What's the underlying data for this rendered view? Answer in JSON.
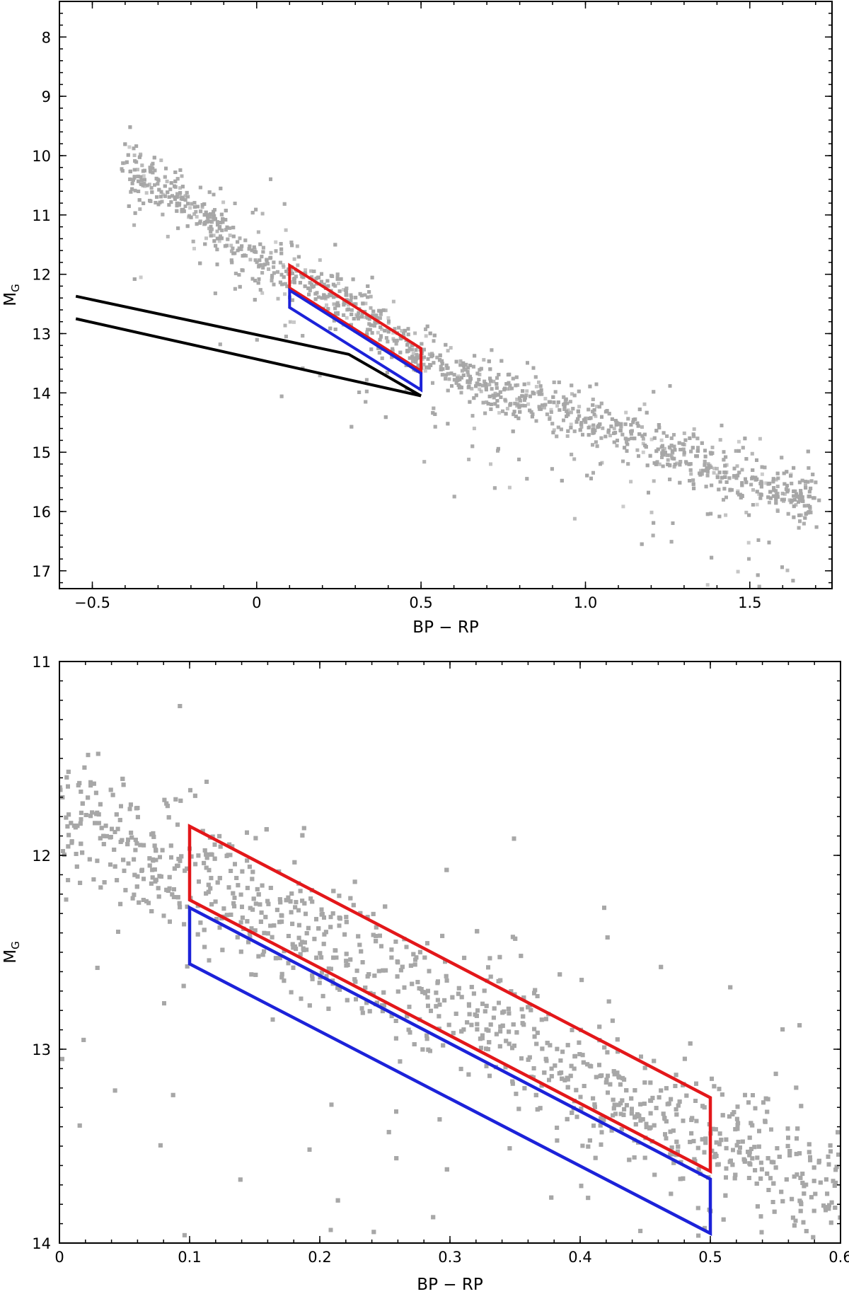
{
  "chart_data": [
    {
      "type": "scatter",
      "title": "",
      "xlabel": "BP − RP",
      "ylabel_main": "M",
      "ylabel_sub": "G",
      "xlim": [
        -0.6,
        1.75
      ],
      "ylim": [
        17.3,
        7.4
      ],
      "y_inverted": true,
      "x_ticks": [
        -0.5,
        0,
        0.5,
        1.0,
        1.5
      ],
      "x_tick_labels": [
        "−0.5",
        "0",
        "0.5",
        "1.0",
        "1.5"
      ],
      "x_minor_step": 0.1,
      "y_ticks": [
        8,
        9,
        10,
        11,
        12,
        13,
        14,
        15,
        16,
        17
      ],
      "y_tick_labels": [
        "8",
        "9",
        "10",
        "11",
        "12",
        "13",
        "14",
        "15",
        "16",
        "17"
      ],
      "y_minor_step": 0.2,
      "points": {
        "description": "white dwarf cooling sequence stars",
        "sequence": [
          [
            -0.35,
            10.35
          ],
          [
            -0.2,
            10.85
          ],
          [
            -0.05,
            11.55
          ],
          [
            0.1,
            11.95
          ],
          [
            0.3,
            12.55
          ],
          [
            0.5,
            13.45
          ],
          [
            0.75,
            14.0
          ],
          [
            1.0,
            14.45
          ],
          [
            1.25,
            15.0
          ],
          [
            1.45,
            15.45
          ],
          [
            1.65,
            15.7
          ]
        ],
        "count": 3400,
        "color": "#a6a6a6"
      },
      "polygons": [
        {
          "color": "#e3171a",
          "vertices": [
            [
              0.1,
              11.85
            ],
            [
              0.5,
              13.25
            ],
            [
              0.5,
              13.63
            ],
            [
              0.1,
              12.23
            ]
          ]
        },
        {
          "color": "#1c22d9",
          "vertices": [
            [
              0.1,
              12.27
            ],
            [
              0.5,
              13.67
            ],
            [
              0.5,
              13.95
            ],
            [
              0.1,
              12.56
            ]
          ]
        }
      ],
      "black_lines": [
        [
          [
            -0.55,
            12.37
          ],
          [
            0.28,
            13.35
          ],
          [
            0.5,
            14.05
          ]
        ],
        [
          [
            -0.55,
            12.75
          ],
          [
            0.5,
            14.05
          ]
        ]
      ]
    },
    {
      "type": "scatter",
      "title": "",
      "xlabel": "BP − RP",
      "ylabel_main": "M",
      "ylabel_sub": "G",
      "xlim": [
        0,
        0.6
      ],
      "ylim": [
        14.0,
        11.0
      ],
      "y_inverted": true,
      "x_ticks": [
        0,
        0.1,
        0.2,
        0.3,
        0.4,
        0.5,
        0.6
      ],
      "x_tick_labels": [
        "0",
        "0.1",
        "0.2",
        "0.3",
        "0.4",
        "0.5",
        "0.6"
      ],
      "x_minor_step": 0.02,
      "y_ticks": [
        11,
        12,
        13,
        14
      ],
      "y_tick_labels": [
        "11",
        "12",
        "13",
        "14"
      ],
      "y_minor_step": 0.1,
      "points": {
        "description": "white dwarf cooling sequence stars (zoom)",
        "sequence": [
          [
            0.0,
            11.8
          ],
          [
            0.1,
            12.1
          ],
          [
            0.2,
            12.45
          ],
          [
            0.3,
            12.8
          ],
          [
            0.4,
            13.15
          ],
          [
            0.5,
            13.5
          ],
          [
            0.6,
            13.7
          ]
        ],
        "count": 2600,
        "color": "#a6a6a6"
      },
      "polygons": [
        {
          "color": "#e3171a",
          "vertices": [
            [
              0.1,
              11.85
            ],
            [
              0.5,
              13.25
            ],
            [
              0.5,
              13.63
            ],
            [
              0.1,
              12.23
            ]
          ]
        },
        {
          "color": "#1c22d9",
          "vertices": [
            [
              0.1,
              12.27
            ],
            [
              0.5,
              13.67
            ],
            [
              0.5,
              13.95
            ],
            [
              0.1,
              12.56
            ]
          ]
        }
      ],
      "black_lines": []
    }
  ]
}
